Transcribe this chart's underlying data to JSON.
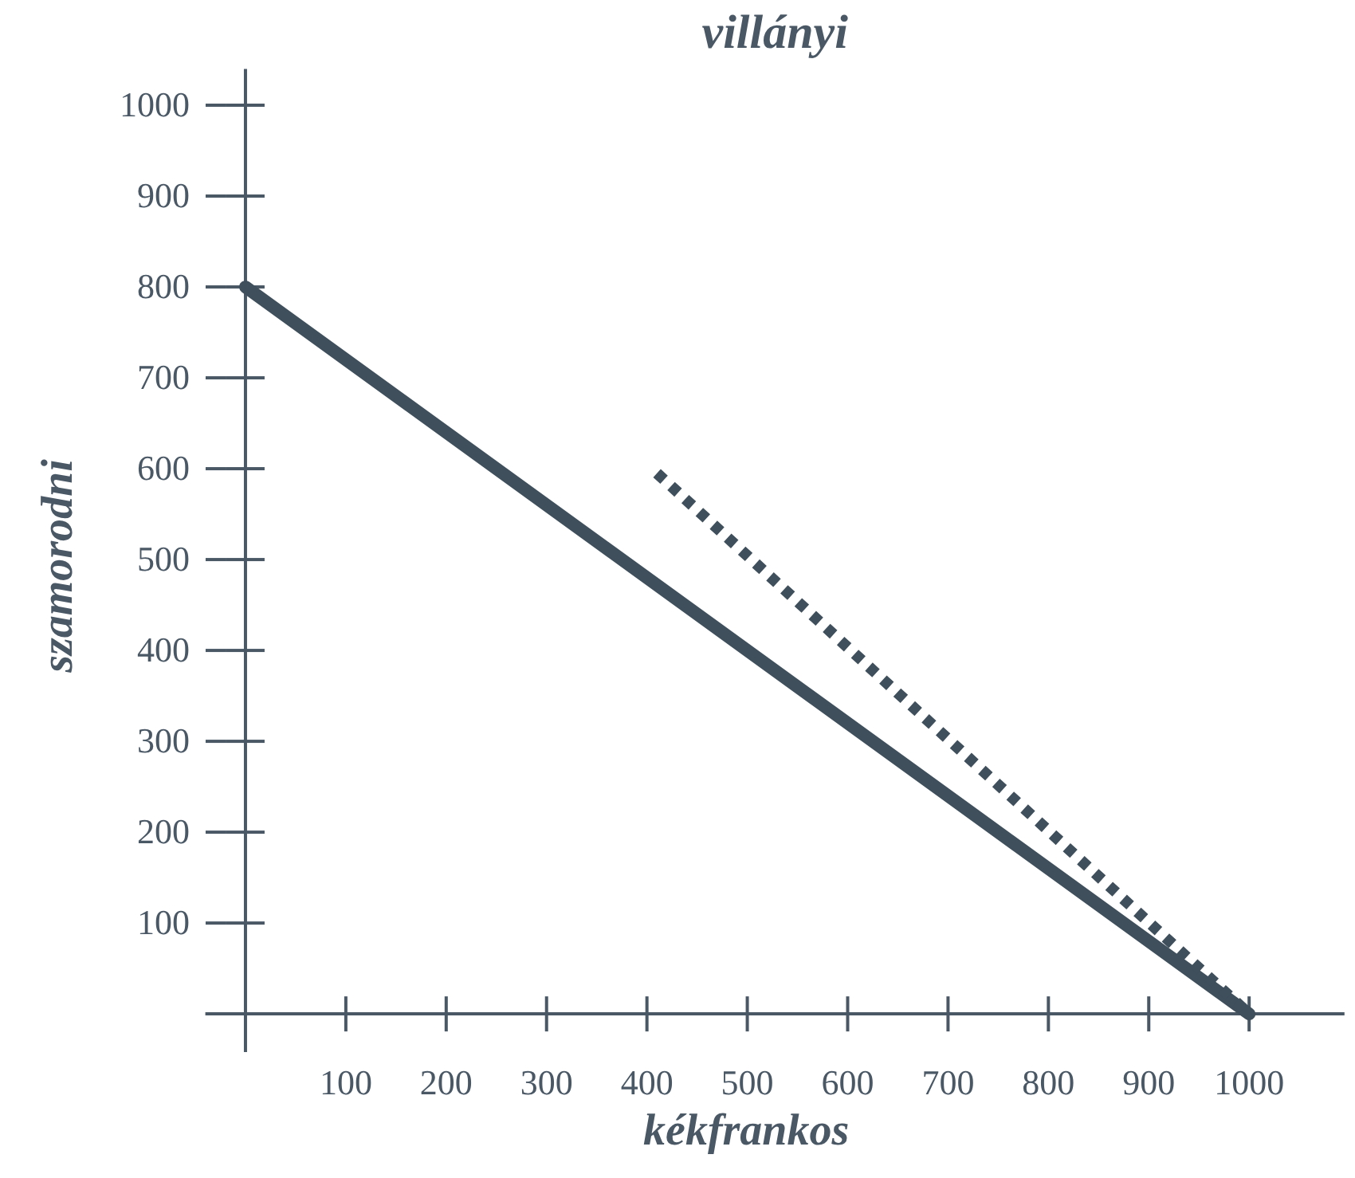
{
  "chart_data": {
    "type": "line",
    "title": "villányi",
    "xlabel": "kékfrankos",
    "ylabel": "szamorodni",
    "xlim": [
      -40,
      1095
    ],
    "ylim": [
      -42,
      1040
    ],
    "xticks": [
      100,
      200,
      300,
      400,
      500,
      600,
      700,
      800,
      900,
      1000
    ],
    "yticks": [
      100,
      200,
      300,
      400,
      500,
      600,
      700,
      800,
      900,
      1000
    ],
    "grid": false,
    "series": [
      {
        "x": [
          0,
          1000
        ],
        "values": [
          800,
          0
        ],
        "color": "#3f4f5c",
        "line_style": "solid"
      },
      {
        "x": [
          410,
          1000
        ],
        "values": [
          595,
          0
        ],
        "color": "#3f4f5c",
        "line_style": "dotted"
      }
    ]
  }
}
